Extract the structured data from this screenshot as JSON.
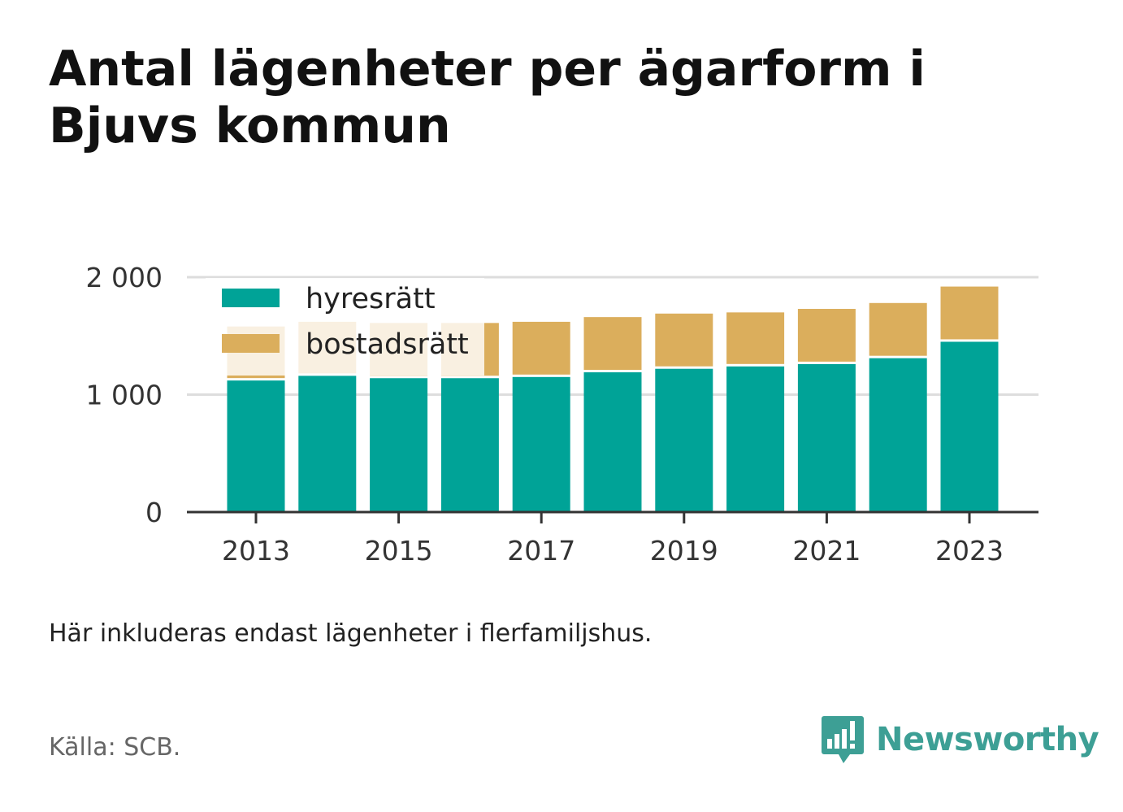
{
  "title": "Antal lägenheter per ägarform i Bjuvs kommun",
  "note": "Här inkluderas endast lägenheter i flerfamiljshus.",
  "source": "Källa: SCB.",
  "brand": "Newsworthy",
  "colors": {
    "hyresratt": "#00a397",
    "bostadsratt": "#dbae5c",
    "grid": "#dddddd",
    "axis": "#333333",
    "brand": "#3d9f95"
  },
  "chart_data": {
    "type": "bar",
    "stacked": true,
    "categories": [
      "2013",
      "2014",
      "2015",
      "2016",
      "2017",
      "2018",
      "2019",
      "2020",
      "2021",
      "2022",
      "2023"
    ],
    "x_tick_labels": [
      "2013",
      "2015",
      "2017",
      "2019",
      "2021",
      "2023"
    ],
    "y_tick_labels": [
      "0",
      "1 000",
      "2 000"
    ],
    "y_ticks": [
      0,
      1000,
      2000
    ],
    "ylim": [
      0,
      2000
    ],
    "grid": true,
    "legend_position": "top-left",
    "series": [
      {
        "name": "hyresrätt",
        "color": "#00a397",
        "values": [
          1120,
          1160,
          1140,
          1140,
          1150,
          1190,
          1220,
          1240,
          1260,
          1310,
          1450
        ]
      },
      {
        "name": "bostadsrätt",
        "color": "#dbae5c",
        "values": [
          460,
          460,
          470,
          470,
          470,
          470,
          470,
          460,
          470,
          470,
          470
        ]
      }
    ]
  }
}
